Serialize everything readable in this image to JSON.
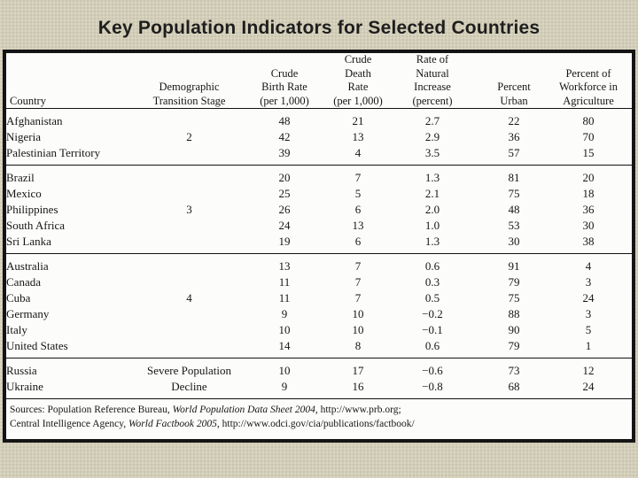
{
  "slide": {
    "title": "Key Population Indicators for Selected Countries"
  },
  "table": {
    "columns_display": [
      "Country",
      "Demographic\nTransition Stage",
      "Crude\nBirth Rate\n(per 1,000)",
      "Crude\nDeath\nRate\n(per 1,000)",
      "Rate of\nNatural\nIncrease\n(percent)",
      "Percent\nUrban",
      "Percent of\nWorkforce in\nAgriculture"
    ],
    "sources": [
      {
        "prefix": "Sources: Population Reference Bureau, ",
        "italic": "World Population Data Sheet 2004",
        "suffix": ", http://www.prb.org;"
      },
      {
        "prefix": "Central Intelligence Agency, ",
        "italic": "World Factbook 2005",
        "suffix": ", http://www.odci.gov/cia/publications/factbook/"
      }
    ]
  },
  "chart_data": {
    "type": "table",
    "title": "Key Population Indicators for Selected Countries",
    "columns": [
      "Country",
      "Demographic Transition Stage",
      "Crude Birth Rate (per 1,000)",
      "Crude Death Rate (per 1,000)",
      "Rate of Natural Increase (percent)",
      "Percent Urban",
      "Percent of Workforce in Agriculture"
    ],
    "groups": [
      {
        "stage": "2",
        "rows": [
          [
            "Afghanistan",
            "",
            "48",
            "21",
            "2.7",
            "22",
            "80"
          ],
          [
            "Nigeria",
            "2",
            "42",
            "13",
            "2.9",
            "36",
            "70"
          ],
          [
            "Palestinian Territory",
            "",
            "39",
            "4",
            "3.5",
            "57",
            "15"
          ]
        ]
      },
      {
        "stage": "3",
        "rows": [
          [
            "Brazil",
            "",
            "20",
            "7",
            "1.3",
            "81",
            "20"
          ],
          [
            "Mexico",
            "",
            "25",
            "5",
            "2.1",
            "75",
            "18"
          ],
          [
            "Philippines",
            "3",
            "26",
            "6",
            "2.0",
            "48",
            "36"
          ],
          [
            "South Africa",
            "",
            "24",
            "13",
            "1.0",
            "53",
            "30"
          ],
          [
            "Sri Lanka",
            "",
            "19",
            "6",
            "1.3",
            "30",
            "38"
          ]
        ]
      },
      {
        "stage": "4",
        "rows": [
          [
            "Australia",
            "",
            "13",
            "7",
            "0.6",
            "91",
            "4"
          ],
          [
            "Canada",
            "",
            "11",
            "7",
            "0.3",
            "79",
            "3"
          ],
          [
            "Cuba",
            "4",
            "11",
            "7",
            "0.5",
            "75",
            "24"
          ],
          [
            "Germany",
            "",
            "9",
            "10",
            "−0.2",
            "88",
            "3"
          ],
          [
            "Italy",
            "",
            "10",
            "10",
            "−0.1",
            "90",
            "5"
          ],
          [
            "United States",
            "",
            "14",
            "8",
            "0.6",
            "79",
            "1"
          ]
        ]
      },
      {
        "stage": "Severe Population Decline",
        "rows": [
          [
            "Russia",
            "Severe Population",
            "10",
            "17",
            "−0.6",
            "73",
            "12"
          ],
          [
            "Ukraine",
            "Decline",
            "9",
            "16",
            "−0.8",
            "68",
            "24"
          ]
        ]
      }
    ],
    "sources": [
      "Sources: Population Reference Bureau, World Population Data Sheet 2004, http://www.prb.org;",
      "Central Intelligence Agency, World Factbook 2005, http://www.odci.gov/cia/publications/factbook/"
    ]
  }
}
